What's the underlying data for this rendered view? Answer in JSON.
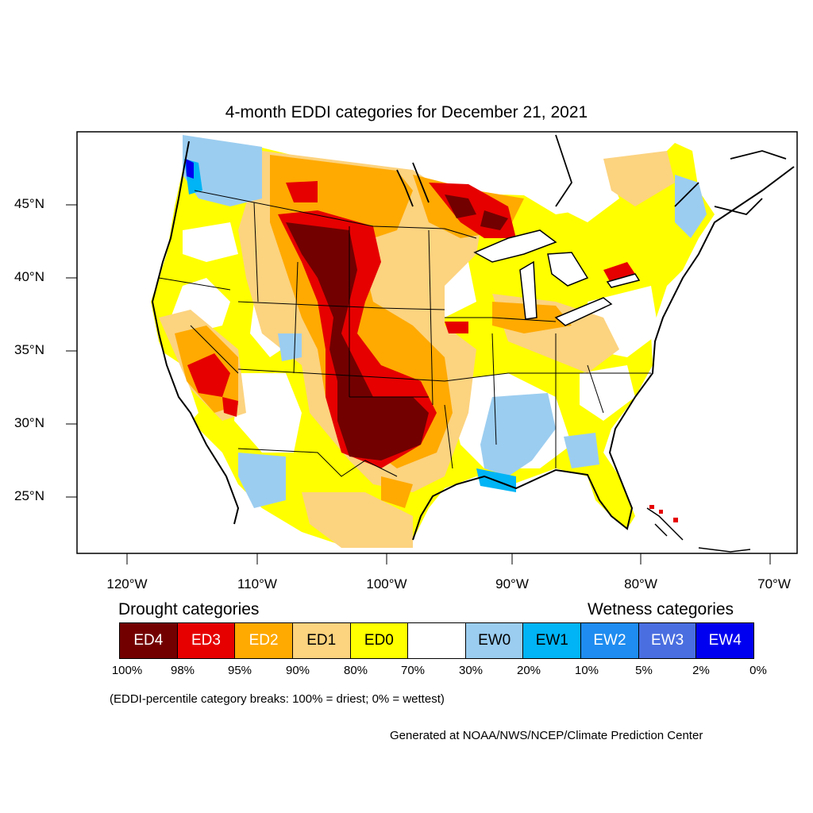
{
  "title": "4-month EDDI categories for December 21, 2021",
  "latitude_labels": [
    "45°N",
    "40°N",
    "35°N",
    "30°N",
    "25°N"
  ],
  "longitude_labels": [
    "120°W",
    "110°W",
    "100°W",
    "90°W",
    "80°W",
    "70°W"
  ],
  "legend": {
    "drought_heading": "Drought categories",
    "wetness_heading": "Wetness categories",
    "categories": [
      {
        "label": "ED4",
        "color": "#730000",
        "text_color": "#ffffff"
      },
      {
        "label": "ED3",
        "color": "#e60000",
        "text_color": "#ffffff"
      },
      {
        "label": "ED2",
        "color": "#ffaa00",
        "text_color": "#ffffff"
      },
      {
        "label": "ED1",
        "color": "#fcd37f",
        "text_color": "#000000"
      },
      {
        "label": "ED0",
        "color": "#ffff00",
        "text_color": "#000000"
      },
      {
        "label": "",
        "color": "#ffffff",
        "text_color": "#000000"
      },
      {
        "label": "EW0",
        "color": "#9bcdf0",
        "text_color": "#000000"
      },
      {
        "label": "EW1",
        "color": "#00b4f5",
        "text_color": "#000000"
      },
      {
        "label": "EW2",
        "color": "#1e8cf0",
        "text_color": "#ffffff"
      },
      {
        "label": "EW3",
        "color": "#4a6ee0",
        "text_color": "#ffffff"
      },
      {
        "label": "EW4",
        "color": "#0000f0",
        "text_color": "#ffffff"
      }
    ],
    "percentile_breaks": [
      "100%",
      "98%",
      "95%",
      "90%",
      "80%",
      "70%",
      "30%",
      "20%",
      "10%",
      "5%",
      "2%",
      "0%"
    ],
    "note": "(EDDI-percentile category breaks: 100% = driest; 0% = wettest)"
  },
  "credit": "Generated at NOAA/NWS/NCEP/Climate Prediction Center"
}
